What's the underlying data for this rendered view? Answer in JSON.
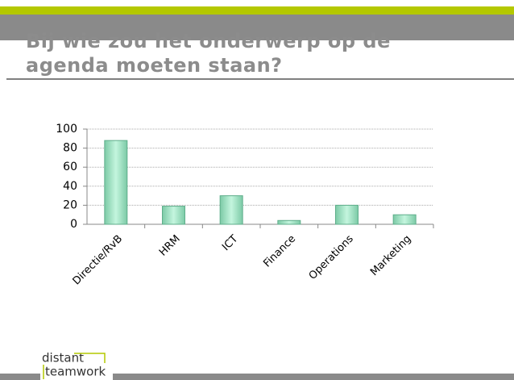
{
  "chart_data": {
    "type": "bar",
    "title": "Bij wie zou het onderwerp op de agenda moeten staan?",
    "categories": [
      "Directie/RvB",
      "HRM",
      "ICT",
      "Finance",
      "Operations",
      "Marketing"
    ],
    "values": [
      88,
      19,
      30,
      4,
      20,
      10
    ],
    "color": "#9fe3c4",
    "ylim": [
      0,
      100
    ],
    "yticks": [
      0,
      20,
      40,
      60,
      80,
      100
    ],
    "grid": true
  },
  "logo": {
    "line1": "distant",
    "line2": "teamwork"
  }
}
